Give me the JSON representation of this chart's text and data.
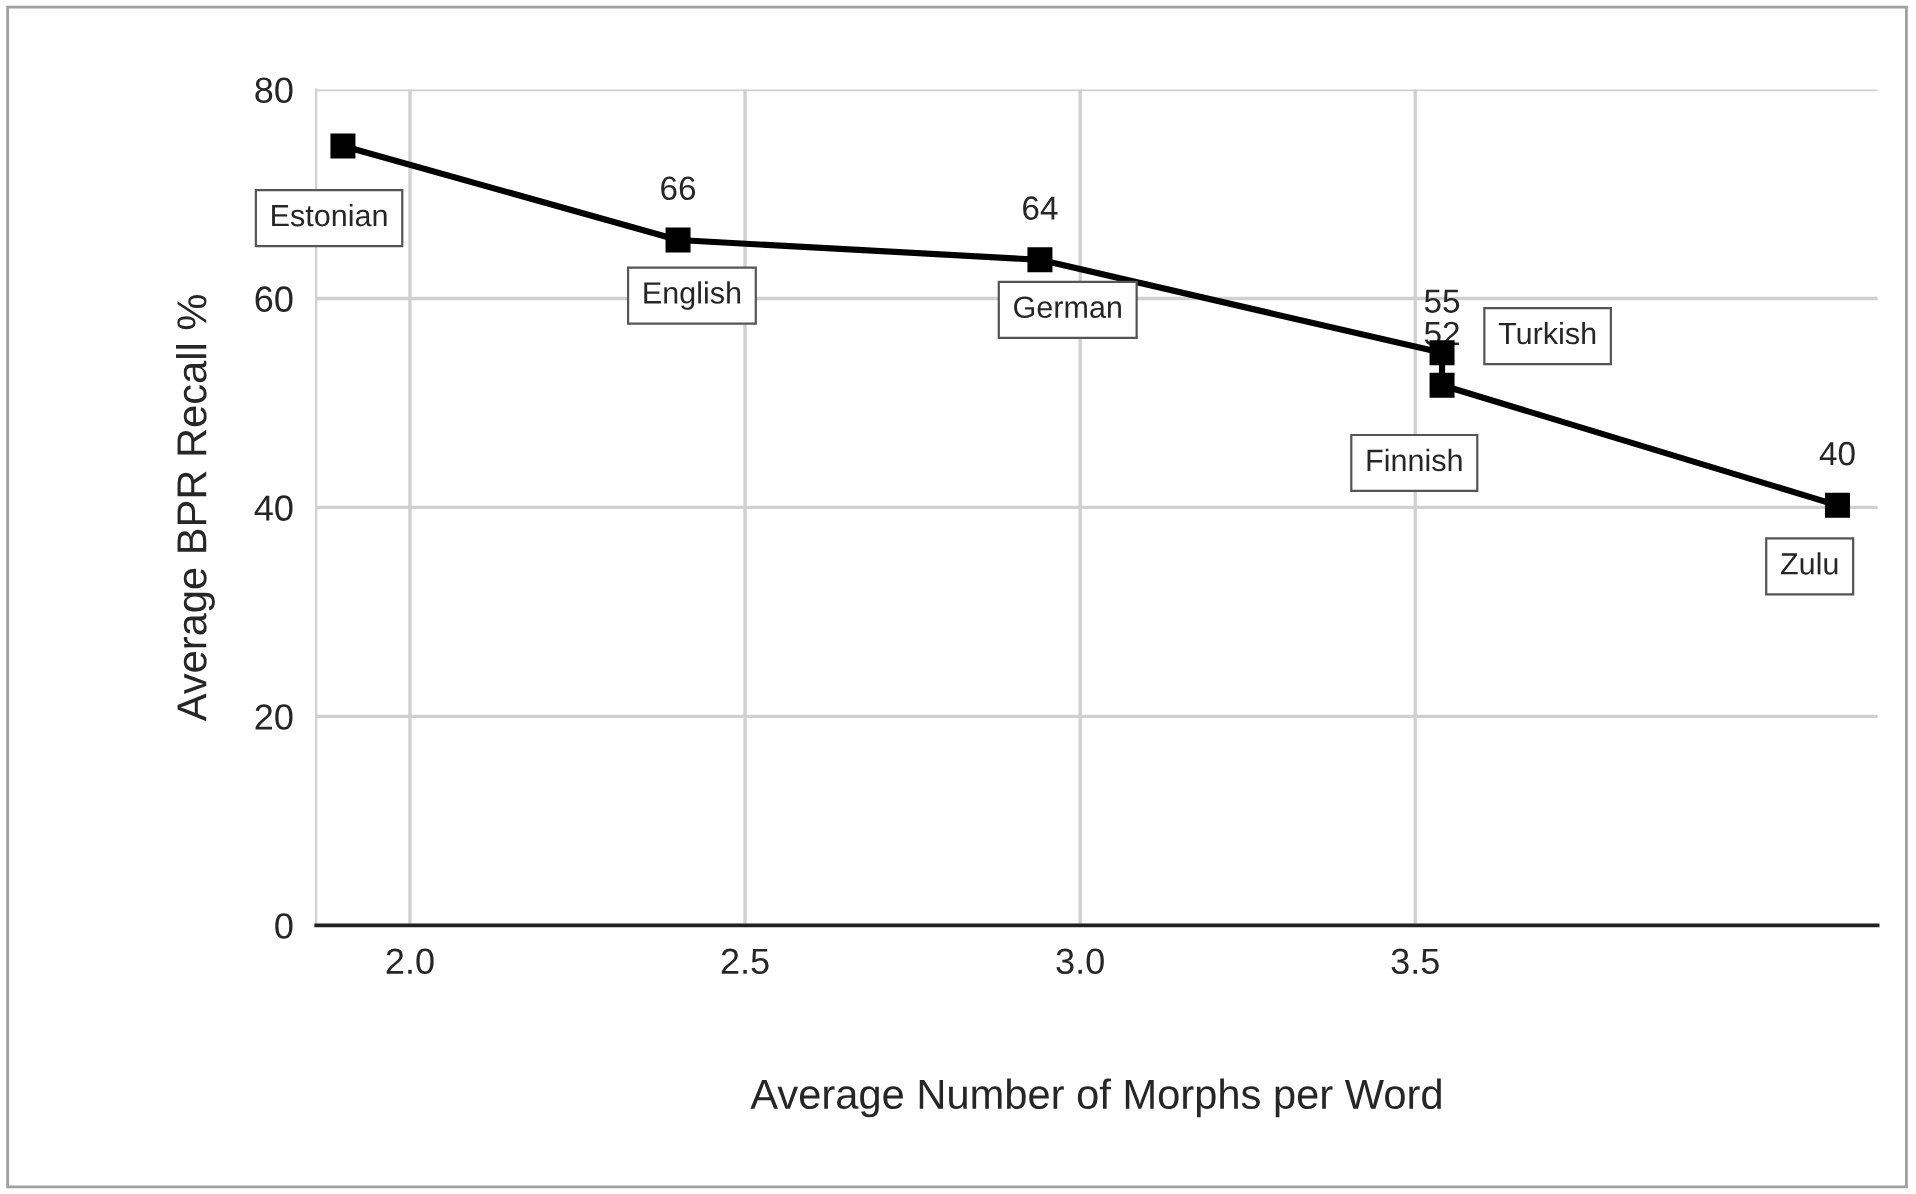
{
  "chart_data": {
    "type": "line",
    "xlabel": "Average Number of Morphs per Word",
    "ylabel": "Average BPR Recall %",
    "series": [
      {
        "color": "#000000",
        "x": [
          1.9,
          2.4,
          2.94,
          3.54,
          3.54,
          4.13
        ],
        "values": [
          74.6,
          65.6,
          63.7,
          54.8,
          51.7,
          40.2
        ],
        "value_labels": [
          null,
          "66",
          "64",
          "55",
          "52",
          "40"
        ]
      }
    ],
    "annotations": [
      {
        "text": "Estonian",
        "x": 1.9,
        "y": 74.6
      },
      {
        "text": "English",
        "x": 2.4,
        "y": 65.6
      },
      {
        "text": "German",
        "x": 2.94,
        "y": 63.7
      },
      {
        "text": "Turkish",
        "x": 3.54,
        "y": 54.8
      },
      {
        "text": "Finnish",
        "x": 3.54,
        "y": 51.7
      },
      {
        "text": "Zulu",
        "x": 4.13,
        "y": 40.2
      }
    ],
    "xlim": [
      1.86,
      4.19
    ],
    "xticks": [
      {
        "value": 2.0,
        "label": "2.0"
      },
      {
        "value": 2.5,
        "label": "2.5"
      },
      {
        "value": 3.0,
        "label": "3.0"
      },
      {
        "value": 3.5,
        "label": "3.5"
      }
    ],
    "ylim": [
      0,
      80
    ],
    "yticks": [
      0,
      20,
      40,
      60,
      80
    ],
    "grid": true,
    "marker": "square",
    "line_style": "solid",
    "legend": false
  }
}
